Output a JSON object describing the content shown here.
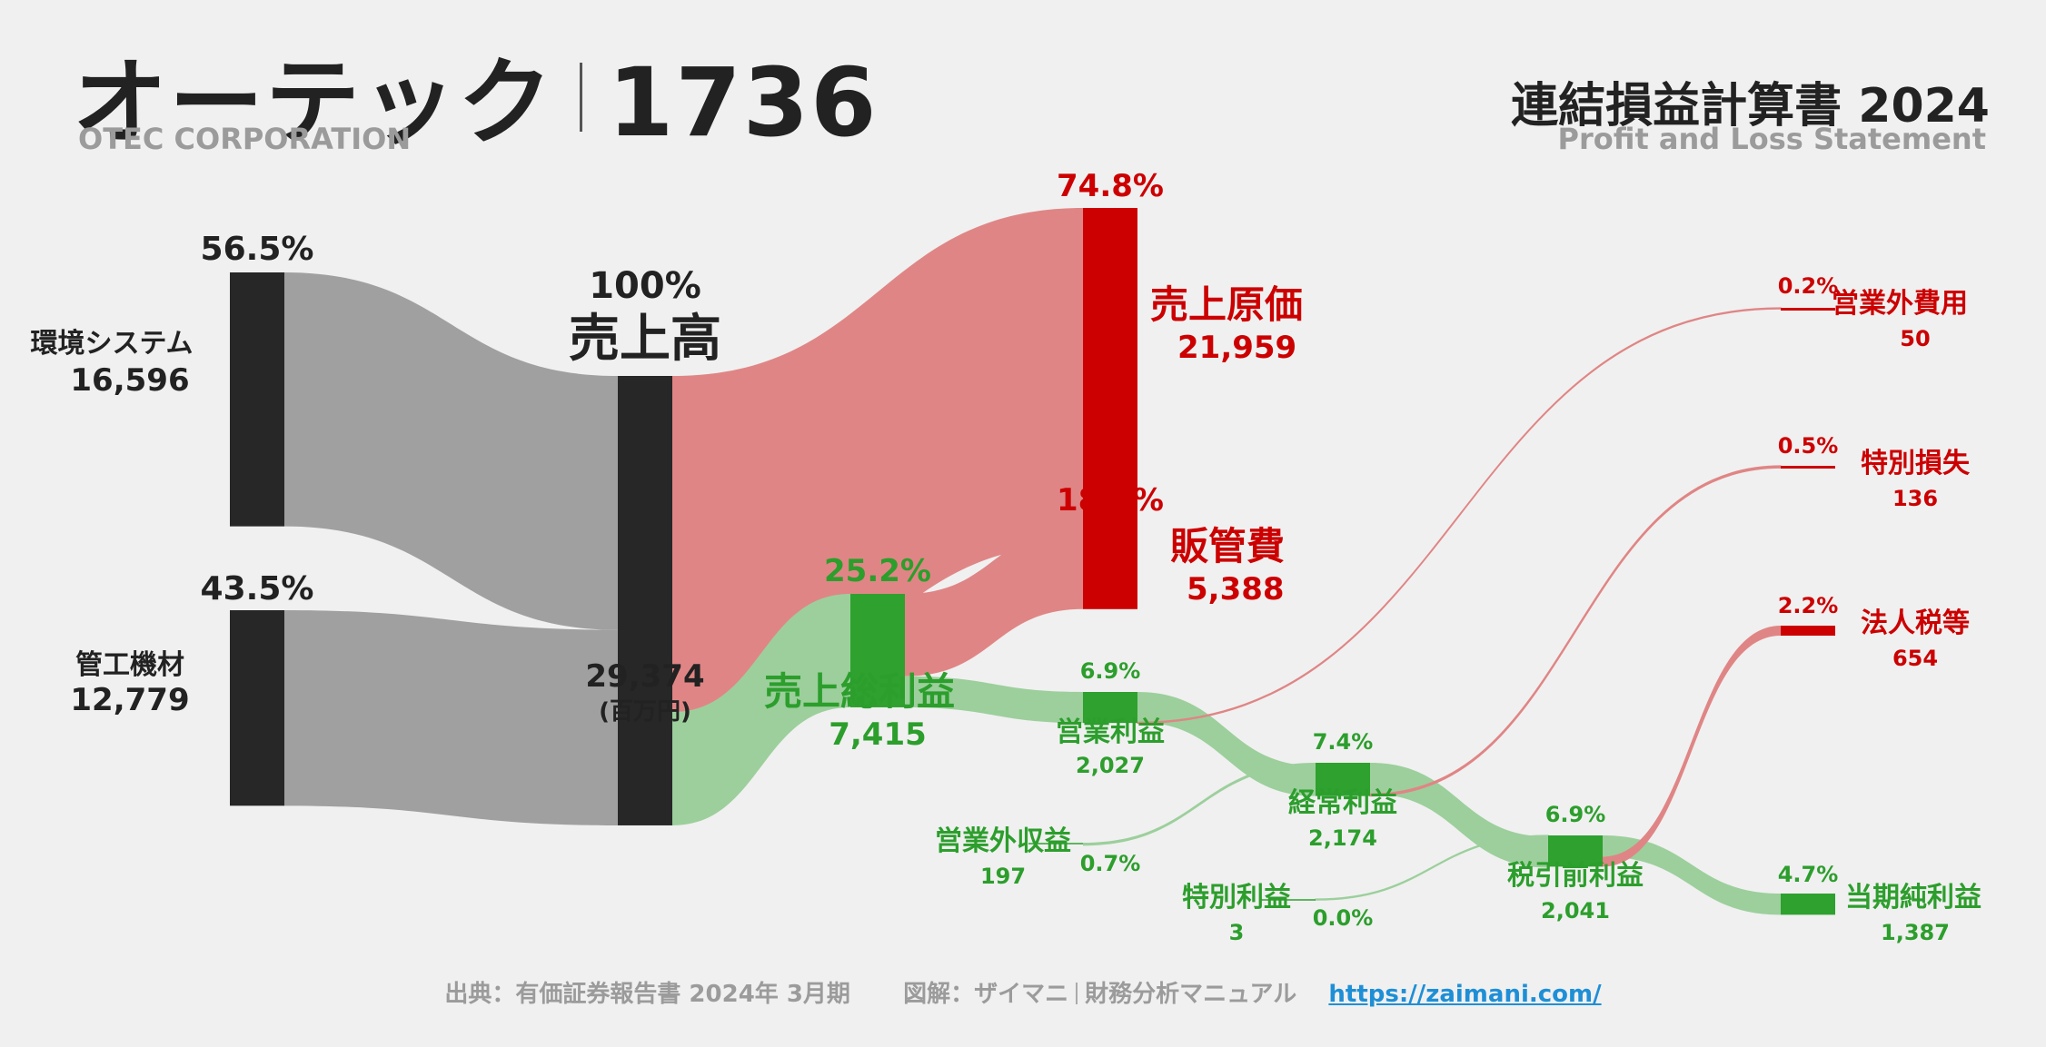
{
  "header": {
    "company": "オーテック",
    "code": "1736",
    "company_en": "OTEC CORPORATION",
    "statement": "連結損益計算書 2024",
    "statement_en": "Profit and Loss Statement"
  },
  "footer": {
    "source": "出典：有価証券報告書 2024年 3月期",
    "credit_a": "図解：ザイマニ",
    "credit_b": "財務分析マニュアル",
    "url": "https://zaimani.com/"
  },
  "colors": {
    "revenue_node": "#272727",
    "revenue_flow": "#a0a0a0",
    "cost_node": "#cc0000",
    "cost_flow": "#e08585",
    "profit_node": "#2ea12e",
    "profit_flow": "#9ccf9c"
  },
  "chart_data": {
    "type": "sankey",
    "unit": "(百万円)",
    "nodes": {
      "env_system": {
        "label": "環境システム",
        "value": "16,596",
        "pct": "56.5%"
      },
      "pipe_equipment": {
        "label": "管工機材",
        "value": "12,779",
        "pct": "43.5%"
      },
      "revenue": {
        "label": "売上高",
        "value": "29,374",
        "pct": "100%"
      },
      "cogs": {
        "label": "売上原価",
        "value": "21,959",
        "pct": "74.8%"
      },
      "gross_profit": {
        "label": "売上総利益",
        "value": "7,415",
        "pct": "25.2%"
      },
      "sga": {
        "label": "販管費",
        "value": "5,388",
        "pct": "18.3%"
      },
      "operating_profit": {
        "label": "営業利益",
        "value": "2,027",
        "pct": "6.9%"
      },
      "non_op_income": {
        "label": "営業外収益",
        "value": "197",
        "pct": "0.7%"
      },
      "non_op_expense": {
        "label": "営業外費用",
        "value": "50",
        "pct": "0.2%"
      },
      "ordinary_profit": {
        "label": "経常利益",
        "value": "2,174",
        "pct": "7.4%"
      },
      "extra_gain": {
        "label": "特別利益",
        "value": "3",
        "pct": "0.0%"
      },
      "extra_loss": {
        "label": "特別損失",
        "value": "136",
        "pct": "0.5%"
      },
      "pretax_profit": {
        "label": "税引前利益",
        "value": "2,041",
        "pct": "6.9%"
      },
      "tax": {
        "label": "法人税等",
        "value": "654",
        "pct": "2.2%"
      },
      "net_profit": {
        "label": "当期純利益",
        "value": "1,387",
        "pct": "4.7%"
      }
    },
    "links": [
      {
        "source": "env_system",
        "target": "revenue",
        "value": 16596
      },
      {
        "source": "pipe_equipment",
        "target": "revenue",
        "value": 12779
      },
      {
        "source": "revenue",
        "target": "cogs",
        "value": 21959
      },
      {
        "source": "revenue",
        "target": "gross_profit",
        "value": 7415
      },
      {
        "source": "gross_profit",
        "target": "sga",
        "value": 5388
      },
      {
        "source": "gross_profit",
        "target": "operating_profit",
        "value": 2027
      },
      {
        "source": "non_op_income",
        "target": "ordinary_profit",
        "value": 197
      },
      {
        "source": "operating_profit",
        "target": "ordinary_profit",
        "value": 1977
      },
      {
        "source": "operating_profit",
        "target": "non_op_expense",
        "value": 50
      },
      {
        "source": "extra_gain",
        "target": "pretax_profit",
        "value": 3
      },
      {
        "source": "ordinary_profit",
        "target": "pretax_profit",
        "value": 2038
      },
      {
        "source": "ordinary_profit",
        "target": "extra_loss",
        "value": 136
      },
      {
        "source": "pretax_profit",
        "target": "net_profit",
        "value": 1387
      },
      {
        "source": "pretax_profit",
        "target": "tax",
        "value": 654
      }
    ]
  }
}
